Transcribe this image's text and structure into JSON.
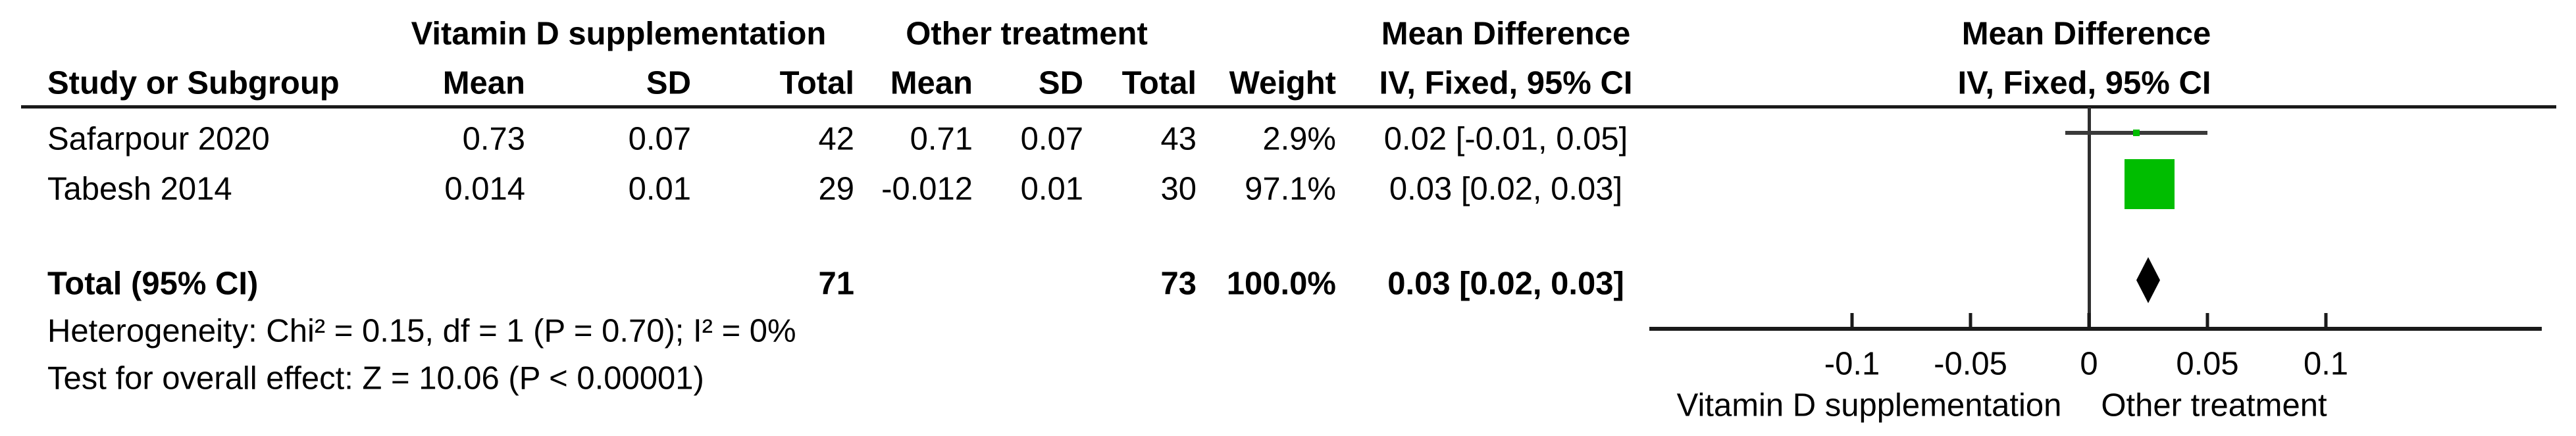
{
  "table": {
    "group1_header": "Vitamin D supplementation",
    "group2_header": "Other treatment",
    "md_col_header_line1": "Mean Difference",
    "md_col_header_line2": "IV, Fixed, 95% CI",
    "plot_header_line1": "Mean Difference",
    "plot_header_line2": "IV, Fixed, 95% CI",
    "columns": {
      "study": "Study or Subgroup",
      "mean1": "Mean",
      "sd1": "SD",
      "total1": "Total",
      "mean2": "Mean",
      "sd2": "SD",
      "total2": "Total",
      "weight": "Weight"
    },
    "rows": [
      {
        "study": "Safarpour 2020",
        "mean1": "0.73",
        "sd1": "0.07",
        "total1": "42",
        "mean2": "0.71",
        "sd2": "0.07",
        "total2": "43",
        "weight": "2.9%",
        "ci": "0.02 [-0.01, 0.05]"
      },
      {
        "study": "Tabesh 2014",
        "mean1": "0.014",
        "sd1": "0.01",
        "total1": "29",
        "mean2": "-0.012",
        "sd2": "0.01",
        "total2": "30",
        "weight": "97.1%",
        "ci": "0.03 [0.02, 0.03]"
      }
    ],
    "total_row": {
      "label": "Total (95% CI)",
      "total1": "71",
      "total2": "73",
      "weight": "100.0%",
      "ci": "0.03 [0.02, 0.03]"
    },
    "heterogeneity": "Heterogeneity: Chi² = 0.15, df = 1 (P = 0.70); I² = 0%",
    "overall_effect": "Test for overall effect: Z = 10.06 (P < 0.00001)"
  },
  "chart_data": {
    "type": "forest",
    "effect_measure": "Mean Difference (IV, Fixed, 95% CI)",
    "studies": [
      {
        "name": "Safarpour 2020",
        "md": 0.02,
        "md_plotted": 0.02,
        "ci_low": -0.01,
        "ci_high": 0.05,
        "weight_pct": 2.9,
        "group1": {
          "mean": 0.73,
          "sd": 0.07,
          "n": 42
        },
        "group2": {
          "mean": 0.71,
          "sd": 0.07,
          "n": 43
        }
      },
      {
        "name": "Tabesh 2014",
        "md": 0.03,
        "md_plotted": 0.0255,
        "ci_low": 0.02,
        "ci_high": 0.03,
        "weight_pct": 97.1,
        "group1": {
          "mean": 0.014,
          "sd": 0.01,
          "n": 29
        },
        "group2": {
          "mean": -0.012,
          "sd": 0.01,
          "n": 30
        }
      }
    ],
    "total": {
      "md": 0.03,
      "ci_low": 0.02,
      "ci_high": 0.03,
      "n1": 71,
      "n2": 73,
      "weight_pct": 100.0
    },
    "heterogeneity": {
      "chi2": 0.15,
      "df": 1,
      "p": 0.7,
      "i2_pct": 0
    },
    "overall_effect": {
      "z": 10.06,
      "p": "< 0.00001"
    },
    "axis": {
      "xlim": [
        -0.185,
        0.19
      ],
      "ticks": [
        -0.1,
        -0.05,
        0,
        0.05,
        0.1
      ],
      "tick_labels": [
        "-0.1",
        "-0.05",
        "0",
        "0.05",
        "0.1"
      ],
      "favours_left": "Vitamin D supplementation",
      "favours_right": "Other treatment"
    },
    "colors": {
      "marker_green": "#00bd00",
      "ci_line": "#3a3a3a",
      "axis_black": "#1a1a1a",
      "diamond": "#000000"
    }
  }
}
